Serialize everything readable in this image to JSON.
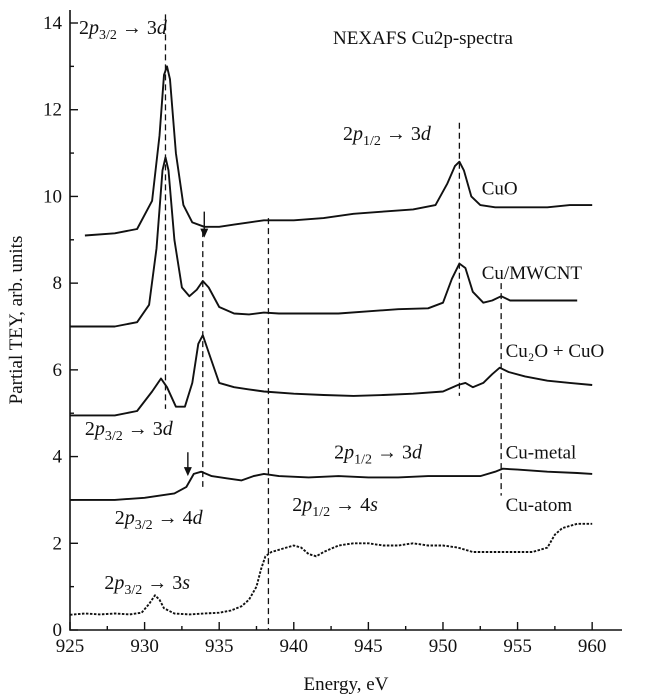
{
  "chart_data": {
    "type": "line",
    "title": "NEXAFS Cu2p-spectra",
    "xlabel": "Energy, eV",
    "ylabel": "Partial TEY, arb. units",
    "xlim": [
      925,
      962
    ],
    "ylim": [
      0,
      14.3
    ],
    "x_ticks": [
      925,
      930,
      935,
      940,
      945,
      950,
      955,
      960
    ],
    "y_ticks": [
      0,
      2,
      4,
      6,
      8,
      10,
      12,
      14
    ],
    "grid": false,
    "series": [
      {
        "name": "CuO",
        "points": [
          [
            926,
            9.1
          ],
          [
            928,
            9.15
          ],
          [
            929.5,
            9.25
          ],
          [
            930.5,
            9.9
          ],
          [
            931,
            11.4
          ],
          [
            931.3,
            12.8
          ],
          [
            931.5,
            13.0
          ],
          [
            931.7,
            12.7
          ],
          [
            932.1,
            11.0
          ],
          [
            932.6,
            9.8
          ],
          [
            933.2,
            9.4
          ],
          [
            934,
            9.3
          ],
          [
            935,
            9.3
          ],
          [
            936,
            9.35
          ],
          [
            937,
            9.4
          ],
          [
            938,
            9.45
          ],
          [
            939,
            9.45
          ],
          [
            940,
            9.45
          ],
          [
            942,
            9.5
          ],
          [
            944,
            9.6
          ],
          [
            946,
            9.65
          ],
          [
            948,
            9.7
          ],
          [
            949.5,
            9.8
          ],
          [
            950.3,
            10.3
          ],
          [
            950.8,
            10.7
          ],
          [
            951.1,
            10.8
          ],
          [
            951.4,
            10.6
          ],
          [
            951.9,
            10.0
          ],
          [
            952.5,
            9.8
          ],
          [
            953.5,
            9.75
          ],
          [
            955,
            9.75
          ],
          [
            957,
            9.75
          ],
          [
            958.5,
            9.8
          ],
          [
            960,
            9.8
          ]
        ]
      },
      {
        "name": "Cu/MWCNT",
        "points": [
          [
            925,
            7.0
          ],
          [
            928,
            7.0
          ],
          [
            929.5,
            7.1
          ],
          [
            930.3,
            7.5
          ],
          [
            930.8,
            8.8
          ],
          [
            931.2,
            10.6
          ],
          [
            931.4,
            10.9
          ],
          [
            931.6,
            10.6
          ],
          [
            932,
            9.0
          ],
          [
            932.5,
            7.9
          ],
          [
            933,
            7.7
          ],
          [
            933.5,
            7.85
          ],
          [
            933.9,
            8.05
          ],
          [
            934.3,
            7.9
          ],
          [
            935,
            7.45
          ],
          [
            936,
            7.3
          ],
          [
            937,
            7.28
          ],
          [
            938,
            7.32
          ],
          [
            939,
            7.3
          ],
          [
            941,
            7.3
          ],
          [
            943,
            7.3
          ],
          [
            945,
            7.35
          ],
          [
            947,
            7.4
          ],
          [
            949,
            7.42
          ],
          [
            950,
            7.55
          ],
          [
            950.6,
            8.1
          ],
          [
            951.1,
            8.45
          ],
          [
            951.5,
            8.35
          ],
          [
            952,
            7.8
          ],
          [
            952.7,
            7.55
          ],
          [
            953.3,
            7.6
          ],
          [
            953.9,
            7.7
          ],
          [
            954.5,
            7.6
          ],
          [
            956,
            7.6
          ],
          [
            958,
            7.6
          ],
          [
            959,
            7.6
          ]
        ]
      },
      {
        "name": "Cu₂O + CuO",
        "points": [
          [
            925,
            4.95
          ],
          [
            928,
            4.95
          ],
          [
            929.5,
            5.05
          ],
          [
            930.5,
            5.5
          ],
          [
            931.1,
            5.8
          ],
          [
            931.5,
            5.6
          ],
          [
            932.1,
            5.15
          ],
          [
            932.7,
            5.15
          ],
          [
            933.2,
            5.7
          ],
          [
            933.6,
            6.6
          ],
          [
            933.9,
            6.8
          ],
          [
            934.3,
            6.4
          ],
          [
            935,
            5.7
          ],
          [
            936,
            5.6
          ],
          [
            937,
            5.55
          ],
          [
            938,
            5.5
          ],
          [
            940,
            5.45
          ],
          [
            942,
            5.42
          ],
          [
            944,
            5.4
          ],
          [
            946,
            5.42
          ],
          [
            948,
            5.45
          ],
          [
            950,
            5.5
          ],
          [
            951,
            5.65
          ],
          [
            951.5,
            5.7
          ],
          [
            952,
            5.6
          ],
          [
            952.7,
            5.7
          ],
          [
            953.3,
            5.9
          ],
          [
            953.8,
            6.05
          ],
          [
            954.4,
            5.95
          ],
          [
            955.5,
            5.85
          ],
          [
            957,
            5.75
          ],
          [
            958.5,
            5.7
          ],
          [
            960,
            5.65
          ]
        ]
      },
      {
        "name": "Cu-metal",
        "points": [
          [
            925,
            3.0
          ],
          [
            928,
            3.0
          ],
          [
            930,
            3.05
          ],
          [
            932,
            3.15
          ],
          [
            932.8,
            3.3
          ],
          [
            933.3,
            3.6
          ],
          [
            933.8,
            3.65
          ],
          [
            934.5,
            3.55
          ],
          [
            935.5,
            3.5
          ],
          [
            936.5,
            3.45
          ],
          [
            937.3,
            3.55
          ],
          [
            938,
            3.6
          ],
          [
            939,
            3.55
          ],
          [
            941,
            3.52
          ],
          [
            943,
            3.55
          ],
          [
            945,
            3.52
          ],
          [
            947,
            3.52
          ],
          [
            949,
            3.55
          ],
          [
            951,
            3.55
          ],
          [
            952.5,
            3.55
          ],
          [
            953.5,
            3.65
          ],
          [
            954,
            3.72
          ],
          [
            955,
            3.7
          ],
          [
            957,
            3.65
          ],
          [
            959,
            3.62
          ],
          [
            960,
            3.6
          ]
        ]
      },
      {
        "name": "Cu-atom",
        "points": [
          [
            925,
            0.35
          ],
          [
            926,
            0.38
          ],
          [
            927,
            0.36
          ],
          [
            928,
            0.38
          ],
          [
            929,
            0.36
          ],
          [
            929.8,
            0.4
          ],
          [
            930.3,
            0.6
          ],
          [
            930.7,
            0.8
          ],
          [
            931,
            0.7
          ],
          [
            931.3,
            0.5
          ],
          [
            932,
            0.38
          ],
          [
            933,
            0.36
          ],
          [
            934,
            0.38
          ],
          [
            935,
            0.4
          ],
          [
            935.8,
            0.45
          ],
          [
            936.5,
            0.55
          ],
          [
            937,
            0.7
          ],
          [
            937.5,
            1.0
          ],
          [
            937.8,
            1.4
          ],
          [
            938.1,
            1.7
          ],
          [
            938.5,
            1.8
          ],
          [
            939,
            1.85
          ],
          [
            939.5,
            1.9
          ],
          [
            940,
            1.95
          ],
          [
            940.5,
            1.9
          ],
          [
            941,
            1.75
          ],
          [
            941.5,
            1.7
          ],
          [
            942,
            1.8
          ],
          [
            943,
            1.95
          ],
          [
            944,
            2.0
          ],
          [
            945,
            2.0
          ],
          [
            946,
            1.95
          ],
          [
            947,
            1.95
          ],
          [
            948,
            2.0
          ],
          [
            949,
            1.95
          ],
          [
            950,
            1.95
          ],
          [
            951,
            1.9
          ],
          [
            952,
            1.8
          ],
          [
            953,
            1.8
          ],
          [
            954,
            1.8
          ],
          [
            955,
            1.8
          ],
          [
            956,
            1.8
          ],
          [
            957,
            1.9
          ],
          [
            957.5,
            2.2
          ],
          [
            958,
            2.35
          ],
          [
            959,
            2.45
          ],
          [
            960,
            2.45
          ]
        ]
      }
    ],
    "series_label_positions": [
      {
        "name": "CuO",
        "x": 952.6,
        "y": 10.05
      },
      {
        "name": "Cu/MWCNT",
        "x": 952.6,
        "y": 8.1
      },
      {
        "name": "Cu₂O + CuO",
        "x": 954.2,
        "y": 6.3
      },
      {
        "name": "Cu-metal",
        "x": 954.2,
        "y": 3.95
      },
      {
        "name": "Cu-atom",
        "x": 954.2,
        "y": 2.75
      }
    ],
    "vertical_reference_lines": [
      {
        "x": 931.4,
        "y_from": 5.1,
        "y_to": 14.2
      },
      {
        "x": 933.9,
        "y_from": 3.3,
        "y_to": 9.2
      },
      {
        "x": 938.3,
        "y_from": 0.0,
        "y_to": 9.5
      },
      {
        "x": 951.1,
        "y_from": 5.4,
        "y_to": 11.7
      },
      {
        "x": 953.9,
        "y_from": 3.1,
        "y_to": 8.0
      }
    ],
    "annotations": [
      {
        "base": "2p",
        "sub": "3/2",
        "rest": "→ 3",
        "orbital": "d",
        "x": 925.6,
        "y": 13.75
      },
      {
        "base": "2p",
        "sub": "1/2",
        "rest": "→ 3",
        "orbital": "d",
        "x": 943.3,
        "y": 11.3
      },
      {
        "base": "2p",
        "sub": "3/2",
        "rest": "→ 3",
        "orbital": "d",
        "x": 926.0,
        "y": 4.5
      },
      {
        "base": "2p",
        "sub": "1/2",
        "rest": "→ 3",
        "orbital": "d",
        "x": 942.7,
        "y": 3.95
      },
      {
        "base": "2p",
        "sub": "3/2",
        "rest": "→ 4",
        "orbital": "d",
        "x": 928.0,
        "y": 2.45
      },
      {
        "base": "2p",
        "sub": "1/2",
        "rest": "→ 4",
        "orbital": "s",
        "x": 939.9,
        "y": 2.75
      },
      {
        "base": "2p",
        "sub": "3/2",
        "rest": "→ 3",
        "orbital": "s",
        "x": 927.3,
        "y": 0.95
      }
    ],
    "arrows": [
      {
        "x": 934.0,
        "y_from": 9.65,
        "y_to": 9.05
      },
      {
        "x": 932.9,
        "y_from": 4.1,
        "y_to": 3.55
      }
    ]
  }
}
